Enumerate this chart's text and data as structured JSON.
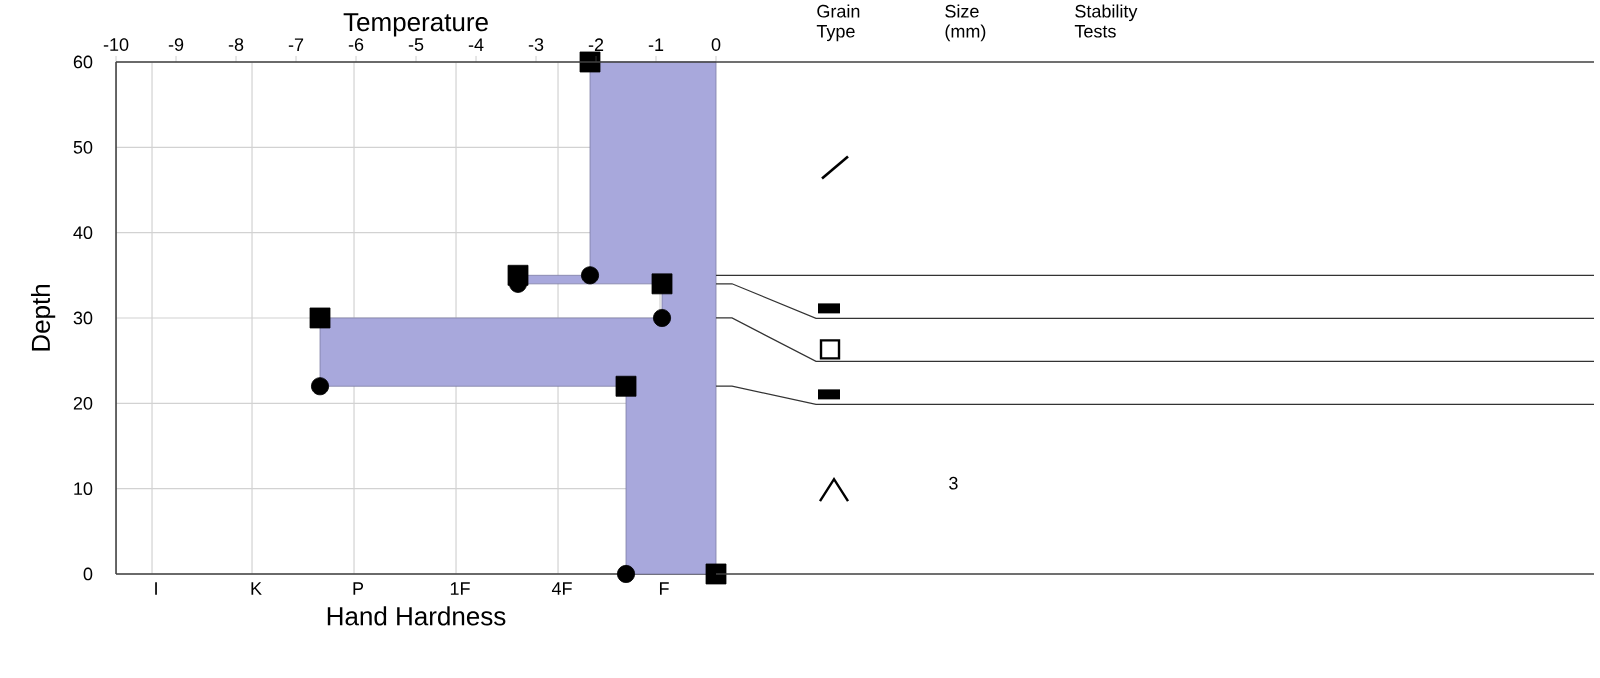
{
  "chart_data": {
    "type": "area",
    "xlabel": "Temperature",
    "ylabel": "Depth",
    "xlim": [
      -10,
      0
    ],
    "xticks": [
      -10,
      -9,
      -8,
      -7,
      -6,
      -5,
      -4,
      -3,
      -2,
      -1,
      0
    ],
    "ylim": [
      0,
      60
    ],
    "yticks": [
      0,
      10,
      20,
      30,
      40,
      50,
      60
    ],
    "grid": true,
    "series": [
      {
        "color": "#a8a8dc",
        "x": [
          0,
          -2.1,
          -2.1,
          -3.3,
          -3.3,
          -0.9,
          -0.9,
          -6.6,
          -6.6,
          -1.5,
          -1.5,
          0
        ],
        "values": [
          60,
          60,
          35,
          35,
          34,
          34,
          30,
          30,
          22,
          22,
          0,
          0
        ]
      },
      {
        "type": "scatter",
        "marker": "square",
        "color": "#000000",
        "x": [
          -2.1,
          -3.3,
          -0.9,
          -6.6,
          -1.5,
          0
        ],
        "values": [
          60,
          35,
          34,
          30,
          22,
          0
        ]
      },
      {
        "type": "scatter",
        "marker": "circle",
        "color": "#000000",
        "x": [
          -2.1,
          -3.3,
          -0.9,
          -6.6,
          -1.5
        ],
        "values": [
          35,
          34,
          30,
          22,
          0
        ]
      }
    ],
    "annotations": [
      "Grain Type",
      "Size (mm)",
      "Stability Tests",
      "3",
      "Hand Hardness",
      "I",
      "K",
      "P",
      "1F",
      "4F",
      "F"
    ]
  }
}
